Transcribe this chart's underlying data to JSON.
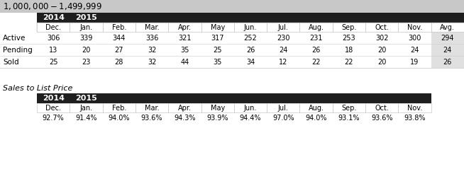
{
  "title": "$1,000,000 - $1,499,999",
  "title_bg": "#c8c8c8",
  "header_bg": "#1e1e1e",
  "avg_bg": "#e0e0e0",
  "row_labels": [
    "Active",
    "Pending",
    "Sold"
  ],
  "col_headers": [
    "Dec.",
    "Jan.",
    "Feb.",
    "Mar.",
    "Apr.",
    "May",
    "Jun.",
    "Jul.",
    "Aug.",
    "Sep.",
    "Oct.",
    "Nov.",
    "Avg."
  ],
  "year_labels": [
    "2014",
    "2015"
  ],
  "active_vals": [
    "306",
    "339",
    "344",
    "336",
    "321",
    "317",
    "252",
    "230",
    "231",
    "253",
    "302",
    "300",
    "294"
  ],
  "pending_vals": [
    "13",
    "20",
    "27",
    "32",
    "35",
    "25",
    "26",
    "24",
    "26",
    "18",
    "20",
    "24",
    "24"
  ],
  "sold_vals": [
    "25",
    "23",
    "28",
    "32",
    "44",
    "35",
    "34",
    "12",
    "22",
    "22",
    "20",
    "19",
    "26"
  ],
  "section2_title": "Sales to List Price",
  "section2_col_headers": [
    "Dec.",
    "Jan.",
    "Feb.",
    "Mar.",
    "Apr.",
    "May",
    "Jun.",
    "Jul.",
    "Aug.",
    "Sep.",
    "Oct.",
    "Nov."
  ],
  "section2_vals": [
    "92.7%",
    "91.4%",
    "94.0%",
    "93.6%",
    "94.3%",
    "93.9%",
    "94.4%",
    "97.0%",
    "94.0%",
    "93.1%",
    "93.6%",
    "93.8%"
  ],
  "fig_w": 6.54,
  "fig_h": 2.39,
  "dpi": 100
}
